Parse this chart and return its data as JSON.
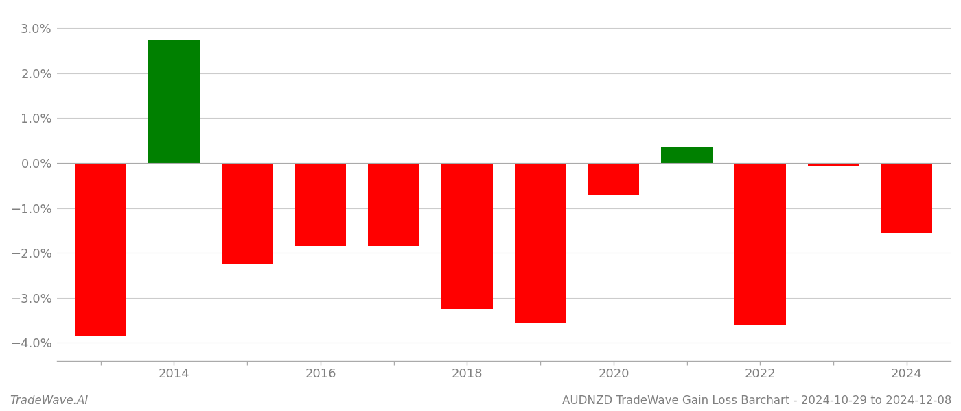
{
  "years": [
    2013,
    2014,
    2015,
    2016,
    2017,
    2018,
    2019,
    2020,
    2021,
    2022,
    2023,
    2024
  ],
  "values": [
    -0.0385,
    0.0273,
    -0.0225,
    -0.0185,
    -0.0185,
    -0.0325,
    -0.0355,
    -0.0072,
    0.0035,
    -0.036,
    -0.0007,
    -0.0155
  ],
  "colors": [
    "#ff0000",
    "#008000",
    "#ff0000",
    "#ff0000",
    "#ff0000",
    "#ff0000",
    "#ff0000",
    "#ff0000",
    "#008000",
    "#ff0000",
    "#ff0000",
    "#ff0000"
  ],
  "ylim": [
    -0.044,
    0.034
  ],
  "yticks": [
    -0.04,
    -0.03,
    -0.02,
    -0.01,
    0.0,
    0.01,
    0.02,
    0.03
  ],
  "xlabel_ticks": [
    2013,
    2014,
    2015,
    2016,
    2017,
    2018,
    2019,
    2020,
    2021,
    2022,
    2023,
    2024
  ],
  "xlabel_labels_even": [
    2014,
    2016,
    2018,
    2020,
    2022,
    2024
  ],
  "footer_left": "TradeWave.AI",
  "footer_right": "AUDNZD TradeWave Gain Loss Barchart - 2024-10-29 to 2024-12-08",
  "bar_width": 0.7,
  "background_color": "#ffffff",
  "grid_color": "#cccccc",
  "text_color": "#808080"
}
